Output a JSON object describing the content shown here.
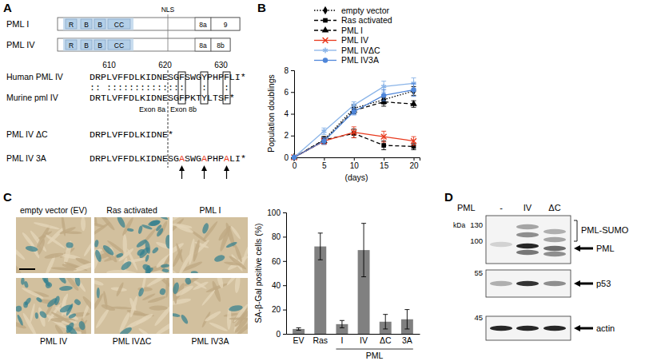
{
  "panel_labels": [
    "A",
    "B",
    "C",
    "D"
  ],
  "diagram": {
    "isoforms": [
      {
        "name": "PML I",
        "domains": [
          "R",
          "B",
          "B",
          "CC"
        ],
        "exons": [
          "8a",
          "9"
        ]
      },
      {
        "name": "PML IV",
        "domains": [
          "R",
          "B",
          "B",
          "CC"
        ],
        "exons": [
          "8a",
          "8b"
        ]
      }
    ],
    "nls": "NLS",
    "positions": [
      610,
      620,
      630
    ],
    "alignment": ":: ::::::::::::::   :   :",
    "exon_labels": [
      "Exon 8a",
      "Exon 8b"
    ],
    "sequences": [
      {
        "name": "Human PML IV",
        "parts": [
          {
            "text": "DRPLVFFDLKIDNESGFSWGYPHPFLI*",
            "mutated": false
          }
        ]
      },
      {
        "name": "Murine pml IV",
        "parts": [
          {
            "text": "DRTLVFFDLKIDNESGFPKTYLTSF*",
            "mutated": false
          }
        ]
      },
      {
        "name": "PML IV ΔC",
        "parts": [
          {
            "text": "DRPLVFFDLKIDNE*",
            "mutated": false
          }
        ]
      },
      {
        "name": "PML IV 3A",
        "parts": [
          {
            "text": "DRPLVFFDLKIDNESG",
            "mutated": false
          },
          {
            "text": "A",
            "mutated": true
          },
          {
            "text": "SWG",
            "mutated": false
          },
          {
            "text": "A",
            "mutated": true
          },
          {
            "text": "PHP",
            "mutated": false
          },
          {
            "text": "A",
            "mutated": true
          },
          {
            "text": "LI*",
            "mutated": false
          }
        ]
      }
    ]
  },
  "chart_data": [
    {
      "type": "line",
      "x_label": "(days)",
      "y_label": "Population doublings",
      "x": [
        0,
        5,
        10,
        15,
        20
      ],
      "xlim": [
        0,
        21
      ],
      "xticks": [
        0,
        5,
        10,
        15,
        20
      ],
      "ylim": [
        0,
        8
      ],
      "yticks": [
        0,
        2,
        4,
        6,
        8
      ],
      "legend": "top-left",
      "series": [
        {
          "name": "empty vector",
          "color": "#000000",
          "marker": "diamond",
          "line_style": "dotted",
          "values": [
            0,
            1.6,
            4.5,
            5.3,
            6.1
          ],
          "errors": [
            0,
            0.3,
            0.3,
            0.4,
            0.4
          ]
        },
        {
          "name": "Ras activated",
          "color": "#000000",
          "marker": "square",
          "line_style": "dashed",
          "values": [
            0,
            1.6,
            2.2,
            1.1,
            1.0
          ],
          "errors": [
            0,
            0.3,
            0.4,
            0.4,
            0.3
          ]
        },
        {
          "name": "PML I",
          "color": "#000000",
          "marker": "triangle",
          "line_style": "dashed",
          "values": [
            0,
            1.5,
            4.3,
            5.1,
            4.9
          ],
          "errors": [
            0,
            0.3,
            0.3,
            0.4,
            0.3
          ]
        },
        {
          "name": "PML IV",
          "color": "#e8391d",
          "marker": "cross",
          "line_style": "solid",
          "values": [
            0,
            1.5,
            2.3,
            1.9,
            1.5
          ],
          "errors": [
            0,
            0.3,
            0.5,
            0.5,
            0.4
          ]
        },
        {
          "name": "PML IVΔC",
          "color": "#8ab4e8",
          "marker": "asterisk",
          "line_style": "solid",
          "values": [
            0,
            2.4,
            4.8,
            6.5,
            6.8
          ],
          "errors": [
            0,
            0.3,
            0.3,
            0.5,
            0.5
          ]
        },
        {
          "name": "PML IV3A",
          "color": "#4f86d9",
          "marker": "circle",
          "line_style": "solid",
          "values": [
            0,
            1.5,
            4.2,
            5.7,
            6.2
          ],
          "errors": [
            0,
            0.3,
            0.3,
            0.5,
            0.6
          ]
        }
      ]
    },
    {
      "type": "bar",
      "y_label": "SA-β-Gal positive cells (%)",
      "categories": [
        "EV",
        "Ras",
        "I",
        "IV",
        "ΔC",
        "3A"
      ],
      "annotations": [
        "PML"
      ],
      "values": [
        4,
        72,
        8,
        69,
        10,
        12
      ],
      "errors": [
        1,
        11,
        3,
        22,
        6,
        8
      ],
      "color": "#808080",
      "ylim": [
        0,
        100
      ],
      "yticks": [
        0,
        20,
        40,
        60,
        80,
        100
      ]
    }
  ],
  "micrographs": [
    "empty vector (EV)",
    "Ras activated",
    "PML I",
    "PML IV",
    "PML IVΔC",
    "PML IV3A"
  ],
  "blot": {
    "header": "PML",
    "lanes": [
      "-",
      "IV",
      "ΔC"
    ],
    "marker_unit": "kDa",
    "markers": [
      130,
      100,
      55,
      45
    ],
    "bands": [
      "PML-SUMO",
      "PML",
      "p53",
      "actin"
    ]
  }
}
